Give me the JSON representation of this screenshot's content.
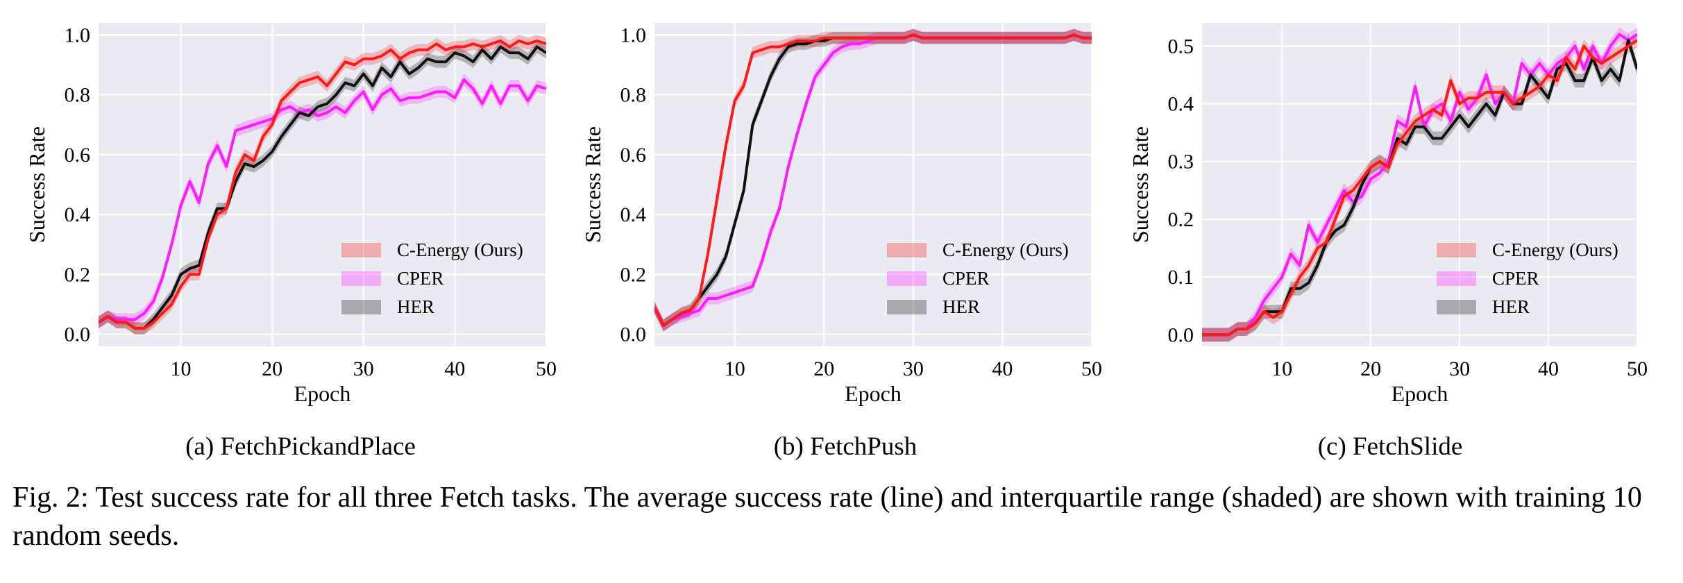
{
  "colors": {
    "plot_bg": "#eaeaf2",
    "grid": "#ffffff",
    "c_energy": "#ff1a1a",
    "cper": "#ff1aff",
    "her": "#111111"
  },
  "chart_data": [
    {
      "type": "line",
      "id": "a",
      "subcaption": "(a) FetchPickandPlace",
      "xlabel": "Epoch",
      "ylabel": "Success Rate",
      "xlim": [
        1,
        50
      ],
      "ylim": [
        -0.04,
        1.04
      ],
      "xticks": [
        10,
        20,
        30,
        40,
        50
      ],
      "yticks": [
        0.0,
        0.2,
        0.4,
        0.6,
        0.8,
        1.0
      ],
      "ytick_labels": [
        "0.0",
        "0.2",
        "0.4",
        "0.6",
        "0.8",
        "1.0"
      ],
      "grid": true,
      "legend_position": "lower-right",
      "band_halfwidth": 0.02,
      "x": [
        1,
        2,
        3,
        4,
        5,
        6,
        7,
        8,
        9,
        10,
        11,
        12,
        13,
        14,
        15,
        16,
        17,
        18,
        19,
        20,
        21,
        22,
        23,
        24,
        25,
        26,
        27,
        28,
        29,
        30,
        31,
        32,
        33,
        34,
        35,
        36,
        37,
        38,
        39,
        40,
        41,
        42,
        43,
        44,
        45,
        46,
        47,
        48,
        49,
        50
      ],
      "series": [
        {
          "name": "C-Energy (Ours)",
          "color_key": "c_energy",
          "values": [
            0.04,
            0.06,
            0.04,
            0.04,
            0.02,
            0.02,
            0.04,
            0.07,
            0.1,
            0.16,
            0.2,
            0.2,
            0.32,
            0.4,
            0.42,
            0.54,
            0.6,
            0.58,
            0.66,
            0.7,
            0.78,
            0.81,
            0.84,
            0.85,
            0.86,
            0.83,
            0.87,
            0.91,
            0.9,
            0.92,
            0.92,
            0.93,
            0.95,
            0.92,
            0.94,
            0.95,
            0.95,
            0.97,
            0.95,
            0.96,
            0.96,
            0.97,
            0.96,
            0.97,
            0.98,
            0.96,
            0.98,
            0.97,
            0.98,
            0.97
          ]
        },
        {
          "name": "CPER",
          "color_key": "cper",
          "values": [
            0.04,
            0.06,
            0.05,
            0.05,
            0.05,
            0.07,
            0.11,
            0.19,
            0.3,
            0.43,
            0.51,
            0.44,
            0.57,
            0.63,
            0.56,
            0.68,
            0.69,
            0.7,
            0.71,
            0.72,
            0.75,
            0.76,
            0.74,
            0.75,
            0.73,
            0.74,
            0.76,
            0.74,
            0.78,
            0.81,
            0.75,
            0.8,
            0.82,
            0.78,
            0.79,
            0.79,
            0.8,
            0.81,
            0.81,
            0.79,
            0.85,
            0.82,
            0.77,
            0.83,
            0.77,
            0.83,
            0.83,
            0.78,
            0.83,
            0.82
          ]
        },
        {
          "name": "HER",
          "color_key": "her",
          "values": [
            0.04,
            0.06,
            0.04,
            0.04,
            0.02,
            0.02,
            0.05,
            0.09,
            0.13,
            0.2,
            0.22,
            0.23,
            0.34,
            0.42,
            0.42,
            0.51,
            0.57,
            0.56,
            0.58,
            0.61,
            0.66,
            0.7,
            0.74,
            0.73,
            0.76,
            0.77,
            0.8,
            0.84,
            0.83,
            0.87,
            0.83,
            0.89,
            0.86,
            0.91,
            0.87,
            0.89,
            0.92,
            0.91,
            0.91,
            0.94,
            0.93,
            0.91,
            0.95,
            0.92,
            0.96,
            0.94,
            0.94,
            0.92,
            0.96,
            0.94
          ]
        }
      ]
    },
    {
      "type": "line",
      "id": "b",
      "subcaption": "(b) FetchPush",
      "xlabel": "Epoch",
      "ylabel": "Success Rate",
      "xlim": [
        1,
        50
      ],
      "ylim": [
        -0.04,
        1.04
      ],
      "xticks": [
        10,
        20,
        30,
        40,
        50
      ],
      "yticks": [
        0.0,
        0.2,
        0.4,
        0.6,
        0.8,
        1.0
      ],
      "ytick_labels": [
        "0.0",
        "0.2",
        "0.4",
        "0.6",
        "0.8",
        "1.0"
      ],
      "grid": true,
      "legend_position": "lower-right",
      "band_halfwidth": 0.02,
      "x": [
        1,
        2,
        3,
        4,
        5,
        6,
        7,
        8,
        9,
        10,
        11,
        12,
        13,
        14,
        15,
        16,
        17,
        18,
        19,
        20,
        21,
        22,
        23,
        24,
        25,
        26,
        27,
        28,
        29,
        30,
        31,
        32,
        33,
        34,
        35,
        36,
        37,
        38,
        39,
        40,
        41,
        42,
        43,
        44,
        45,
        46,
        47,
        48,
        49,
        50
      ],
      "series": [
        {
          "name": "C-Energy (Ours)",
          "color_key": "c_energy",
          "values": [
            0.09,
            0.03,
            0.05,
            0.07,
            0.08,
            0.12,
            0.27,
            0.45,
            0.63,
            0.78,
            0.83,
            0.94,
            0.95,
            0.96,
            0.96,
            0.97,
            0.98,
            0.98,
            0.98,
            0.99,
            0.99,
            0.99,
            0.99,
            0.99,
            0.99,
            0.99,
            0.99,
            0.99,
            0.99,
            1.0,
            0.99,
            0.99,
            0.99,
            0.99,
            0.99,
            0.99,
            0.99,
            0.99,
            0.99,
            0.99,
            0.99,
            0.99,
            0.99,
            0.99,
            0.99,
            0.99,
            0.99,
            1.0,
            0.99,
            0.99
          ]
        },
        {
          "name": "CPER",
          "color_key": "cper",
          "values": [
            0.09,
            0.03,
            0.05,
            0.06,
            0.07,
            0.08,
            0.12,
            0.12,
            0.13,
            0.14,
            0.15,
            0.16,
            0.24,
            0.34,
            0.42,
            0.56,
            0.67,
            0.77,
            0.86,
            0.9,
            0.94,
            0.96,
            0.97,
            0.97,
            0.98,
            0.99,
            0.99,
            0.99,
            0.99,
            1.0,
            0.99,
            0.99,
            0.99,
            0.99,
            0.99,
            0.99,
            0.99,
            0.99,
            0.99,
            0.99,
            0.99,
            0.99,
            0.99,
            0.99,
            0.99,
            0.99,
            0.99,
            1.0,
            0.99,
            0.99
          ]
        },
        {
          "name": "HER",
          "color_key": "her",
          "values": [
            0.09,
            0.03,
            0.05,
            0.07,
            0.08,
            0.12,
            0.16,
            0.2,
            0.26,
            0.37,
            0.48,
            0.7,
            0.78,
            0.86,
            0.92,
            0.96,
            0.97,
            0.97,
            0.98,
            0.98,
            0.99,
            0.99,
            0.99,
            0.99,
            0.99,
            0.99,
            0.99,
            0.99,
            0.99,
            1.0,
            0.99,
            0.99,
            0.99,
            0.99,
            0.99,
            0.99,
            0.99,
            0.99,
            0.99,
            0.99,
            0.99,
            0.99,
            0.99,
            0.99,
            0.99,
            0.99,
            0.99,
            1.0,
            0.99,
            0.99
          ]
        }
      ]
    },
    {
      "type": "line",
      "id": "c",
      "subcaption": "(c) FetchSlide",
      "xlabel": "Epoch",
      "ylabel": "Success Rate",
      "xlim": [
        1,
        50
      ],
      "ylim": [
        -0.02,
        0.54
      ],
      "xticks": [
        10,
        20,
        30,
        40,
        50
      ],
      "yticks": [
        0.0,
        0.1,
        0.2,
        0.3,
        0.4,
        0.5
      ],
      "ytick_labels": [
        "0.0",
        "0.1",
        "0.2",
        "0.3",
        "0.4",
        "0.5"
      ],
      "grid": true,
      "legend_position": "lower-right",
      "band_halfwidth": 0.012,
      "x": [
        1,
        2,
        3,
        4,
        5,
        6,
        7,
        8,
        9,
        10,
        11,
        12,
        13,
        14,
        15,
        16,
        17,
        18,
        19,
        20,
        21,
        22,
        23,
        24,
        25,
        26,
        27,
        28,
        29,
        30,
        31,
        32,
        33,
        34,
        35,
        36,
        37,
        38,
        39,
        40,
        41,
        42,
        43,
        44,
        45,
        46,
        47,
        48,
        49,
        50
      ],
      "series": [
        {
          "name": "C-Energy (Ours)",
          "color_key": "c_energy",
          "values": [
            0.0,
            0.0,
            0.0,
            0.0,
            0.01,
            0.01,
            0.02,
            0.04,
            0.03,
            0.04,
            0.07,
            0.1,
            0.12,
            0.15,
            0.16,
            0.2,
            0.24,
            0.25,
            0.27,
            0.29,
            0.3,
            0.29,
            0.33,
            0.35,
            0.37,
            0.38,
            0.39,
            0.38,
            0.44,
            0.4,
            0.41,
            0.41,
            0.42,
            0.42,
            0.42,
            0.4,
            0.41,
            0.42,
            0.43,
            0.45,
            0.44,
            0.48,
            0.46,
            0.5,
            0.48,
            0.47,
            0.48,
            0.49,
            0.5,
            0.51
          ]
        },
        {
          "name": "CPER",
          "color_key": "cper",
          "values": [
            0.0,
            0.0,
            0.0,
            0.0,
            0.01,
            0.01,
            0.03,
            0.06,
            0.08,
            0.1,
            0.14,
            0.12,
            0.19,
            0.16,
            0.19,
            0.22,
            0.25,
            0.23,
            0.24,
            0.27,
            0.28,
            0.3,
            0.37,
            0.36,
            0.43,
            0.36,
            0.39,
            0.4,
            0.37,
            0.42,
            0.39,
            0.41,
            0.45,
            0.4,
            0.42,
            0.4,
            0.47,
            0.45,
            0.47,
            0.45,
            0.47,
            0.48,
            0.5,
            0.46,
            0.5,
            0.47,
            0.5,
            0.52,
            0.51,
            0.52
          ]
        },
        {
          "name": "HER",
          "color_key": "her",
          "values": [
            0.0,
            0.0,
            0.0,
            0.0,
            0.01,
            0.01,
            0.02,
            0.04,
            0.04,
            0.04,
            0.08,
            0.08,
            0.09,
            0.12,
            0.16,
            0.18,
            0.19,
            0.22,
            0.26,
            0.29,
            0.3,
            0.29,
            0.34,
            0.33,
            0.36,
            0.36,
            0.34,
            0.34,
            0.36,
            0.38,
            0.36,
            0.38,
            0.4,
            0.38,
            0.42,
            0.4,
            0.4,
            0.45,
            0.43,
            0.41,
            0.46,
            0.47,
            0.44,
            0.44,
            0.48,
            0.44,
            0.46,
            0.44,
            0.51,
            0.46
          ]
        }
      ]
    }
  ],
  "caption": "Fig. 2: Test success rate for all three Fetch tasks. The average success rate (line) and interquartile range (shaded) are shown with training 10 random seeds."
}
